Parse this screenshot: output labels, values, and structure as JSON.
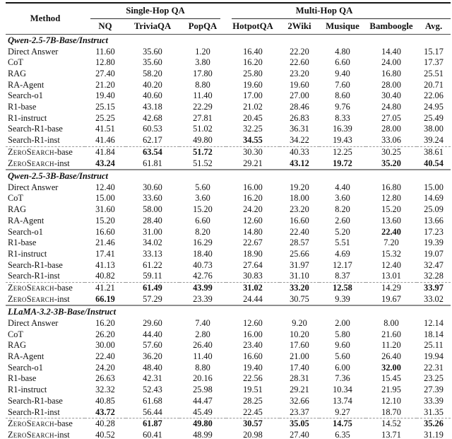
{
  "colors": {
    "background": "#ffffff",
    "text": "#111111",
    "rule_dark": "#161616",
    "rule_gray": "#8f8f8f",
    "dash_gray": "#9a9a9a"
  },
  "table": {
    "method_header": "Method",
    "groups": {
      "single_hop": "Single-Hop QA",
      "multi_hop": "Multi-Hop QA"
    },
    "columns": [
      "NQ",
      "TriviaQA",
      "PopQA",
      "HotpotQA",
      "2Wiki",
      "Musique",
      "Bamboogle",
      "Avg."
    ],
    "sections": [
      {
        "title": "Qwen-2.5-7B-Base/Instruct",
        "rows": [
          {
            "method": "Direct Answer",
            "values": [
              "11.60",
              "35.60",
              "1.20",
              "16.40",
              "22.20",
              "4.80",
              "14.40",
              "15.17"
            ],
            "bold": []
          },
          {
            "method": "CoT",
            "values": [
              "12.80",
              "35.60",
              "3.80",
              "16.20",
              "22.60",
              "6.60",
              "24.00",
              "17.37"
            ],
            "bold": []
          },
          {
            "method": "RAG",
            "values": [
              "27.40",
              "58.20",
              "17.80",
              "25.80",
              "23.20",
              "9.40",
              "16.80",
              "25.51"
            ],
            "bold": []
          },
          {
            "method": "RA-Agent",
            "values": [
              "21.20",
              "40.20",
              "8.80",
              "19.60",
              "19.60",
              "7.60",
              "28.00",
              "20.71"
            ],
            "bold": []
          },
          {
            "method": "Search-o1",
            "values": [
              "19.40",
              "40.60",
              "11.40",
              "17.00",
              "27.00",
              "8.60",
              "30.40",
              "22.06"
            ],
            "bold": []
          },
          {
            "method": "R1-base",
            "values": [
              "25.15",
              "43.18",
              "22.29",
              "21.02",
              "28.46",
              "9.76",
              "24.80",
              "24.95"
            ],
            "bold": []
          },
          {
            "method": "R1-instruct",
            "values": [
              "25.25",
              "42.68",
              "27.81",
              "20.45",
              "26.83",
              "8.33",
              "27.05",
              "25.49"
            ],
            "bold": []
          },
          {
            "method": "Search-R1-base",
            "values": [
              "41.51",
              "60.53",
              "51.02",
              "32.25",
              "36.31",
              "16.39",
              "28.00",
              "38.00"
            ],
            "bold": []
          },
          {
            "method": "Search-R1-inst",
            "values": [
              "41.46",
              "62.17",
              "49.80",
              "34.55",
              "34.22",
              "19.43",
              "33.06",
              "39.24"
            ],
            "bold": [
              3
            ]
          },
          {
            "method": "ZeroSearch-base",
            "method_parts": [
              {
                "text": "ZeroSearch",
                "sc": true
              },
              {
                "text": "-base",
                "sc": false
              }
            ],
            "dash_above": true,
            "values": [
              "41.84",
              "63.54",
              "51.72",
              "30.30",
              "40.33",
              "12.25",
              "30.25",
              "38.61"
            ],
            "bold": [
              1,
              2
            ]
          },
          {
            "method": "ZeroSearch-inst",
            "method_parts": [
              {
                "text": "ZeroSearch",
                "sc": true
              },
              {
                "text": "-inst",
                "sc": false
              }
            ],
            "values": [
              "43.24",
              "61.81",
              "51.52",
              "29.21",
              "43.12",
              "19.72",
              "35.20",
              "40.54"
            ],
            "bold": [
              0,
              4,
              5,
              6,
              7
            ]
          }
        ]
      },
      {
        "title": "Qwen-2.5-3B-Base/Instruct",
        "rows": [
          {
            "method": "Direct Answer",
            "values": [
              "12.40",
              "30.60",
              "5.60",
              "16.00",
              "19.20",
              "4.40",
              "16.80",
              "15.00"
            ],
            "bold": []
          },
          {
            "method": "CoT",
            "values": [
              "15.00",
              "33.60",
              "3.60",
              "16.20",
              "18.00",
              "3.60",
              "12.80",
              "14.69"
            ],
            "bold": []
          },
          {
            "method": "RAG",
            "values": [
              "31.60",
              "58.00",
              "15.20",
              "24.20",
              "23.20",
              "8.20",
              "15.20",
              "25.09"
            ],
            "bold": []
          },
          {
            "method": "RA-Agent",
            "values": [
              "15.20",
              "28.40",
              "6.60",
              "12.60",
              "16.60",
              "2.60",
              "13.60",
              "13.66"
            ],
            "bold": []
          },
          {
            "method": "Search-o1",
            "values": [
              "16.60",
              "31.00",
              "8.20",
              "14.80",
              "22.40",
              "5.20",
              "22.40",
              "17.23"
            ],
            "bold": [
              6
            ]
          },
          {
            "method": "R1-base",
            "values": [
              "21.46",
              "34.02",
              "16.29",
              "22.67",
              "28.57",
              "5.51",
              "7.20",
              "19.39"
            ],
            "bold": []
          },
          {
            "method": "R1-instruct",
            "values": [
              "17.41",
              "33.13",
              "18.40",
              "18.90",
              "25.66",
              "4.69",
              "15.32",
              "19.07"
            ],
            "bold": []
          },
          {
            "method": "Search-R1-base",
            "values": [
              "41.13",
              "61.22",
              "40.73",
              "27.64",
              "31.97",
              "12.17",
              "12.40",
              "32.47"
            ],
            "bold": []
          },
          {
            "method": "Search-R1-inst",
            "values": [
              "40.82",
              "59.11",
              "42.76",
              "30.83",
              "31.10",
              "8.37",
              "13.01",
              "32.28"
            ],
            "bold": []
          },
          {
            "method": "ZeroSearch-base",
            "method_parts": [
              {
                "text": "ZeroSearch",
                "sc": true
              },
              {
                "text": "-base",
                "sc": false
              }
            ],
            "dash_above": true,
            "values": [
              "41.21",
              "61.49",
              "43.99",
              "31.02",
              "33.20",
              "12.58",
              "14.29",
              "33.97"
            ],
            "bold": [
              1,
              2,
              3,
              4,
              5,
              7
            ]
          },
          {
            "method": "ZeroSearch-inst",
            "method_parts": [
              {
                "text": "ZeroSearch",
                "sc": true
              },
              {
                "text": "-inst",
                "sc": false
              }
            ],
            "values": [
              "66.19",
              "57.29",
              "23.39",
              "24.44",
              "30.75",
              "9.39",
              "19.67",
              "33.02"
            ],
            "bold": [
              0
            ]
          }
        ]
      },
      {
        "title": "LLaMA-3.2-3B-Base/Instruct",
        "rows": [
          {
            "method": "Direct Answer",
            "values": [
              "16.20",
              "29.60",
              "7.40",
              "12.60",
              "9.20",
              "2.00",
              "8.00",
              "12.14"
            ],
            "bold": []
          },
          {
            "method": "CoT",
            "values": [
              "26.20",
              "44.40",
              "2.80",
              "16.00",
              "10.20",
              "5.80",
              "21.60",
              "18.14"
            ],
            "bold": []
          },
          {
            "method": "RAG",
            "values": [
              "30.00",
              "57.60",
              "26.40",
              "23.40",
              "17.60",
              "9.60",
              "11.20",
              "25.11"
            ],
            "bold": []
          },
          {
            "method": "RA-Agent",
            "values": [
              "22.40",
              "36.20",
              "11.40",
              "16.60",
              "21.00",
              "5.60",
              "26.40",
              "19.94"
            ],
            "bold": []
          },
          {
            "method": "Search-o1",
            "values": [
              "24.20",
              "48.40",
              "8.80",
              "19.40",
              "17.40",
              "6.00",
              "32.00",
              "22.31"
            ],
            "bold": [
              6
            ]
          },
          {
            "method": "R1-base",
            "values": [
              "26.63",
              "42.31",
              "20.16",
              "22.56",
              "28.31",
              "7.36",
              "15.45",
              "23.25"
            ],
            "bold": []
          },
          {
            "method": "R1-instruct",
            "values": [
              "32.32",
              "52.43",
              "25.98",
              "19.51",
              "29.21",
              "10.34",
              "21.95",
              "27.39"
            ],
            "bold": []
          },
          {
            "method": "Search-R1-base",
            "values": [
              "40.85",
              "61.68",
              "44.47",
              "28.25",
              "32.66",
              "13.74",
              "12.10",
              "33.39"
            ],
            "bold": []
          },
          {
            "method": "Search-R1-inst",
            "values": [
              "43.72",
              "56.44",
              "45.49",
              "22.45",
              "23.37",
              "9.27",
              "18.70",
              "31.35"
            ],
            "bold": [
              0
            ]
          },
          {
            "method": "ZeroSearch-base",
            "method_parts": [
              {
                "text": "ZeroSearch",
                "sc": true
              },
              {
                "text": "-base",
                "sc": false
              }
            ],
            "dash_above": true,
            "values": [
              "40.28",
              "61.87",
              "49.80",
              "30.57",
              "35.05",
              "14.75",
              "14.52",
              "35.26"
            ],
            "bold": [
              1,
              2,
              3,
              4,
              5,
              7
            ]
          },
          {
            "method": "ZeroSearch-inst",
            "method_parts": [
              {
                "text": "ZeroSearch",
                "sc": true
              },
              {
                "text": "-inst",
                "sc": false
              }
            ],
            "values": [
              "40.52",
              "60.41",
              "48.99",
              "20.98",
              "27.40",
              "6.35",
              "13.71",
              "31.19"
            ],
            "bold": []
          }
        ]
      }
    ]
  }
}
